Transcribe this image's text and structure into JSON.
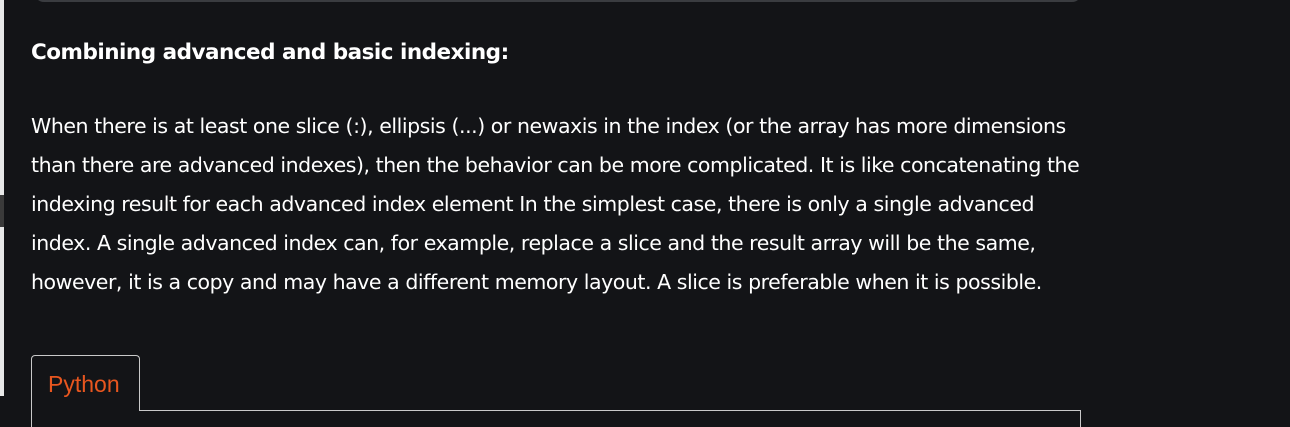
{
  "section": {
    "heading": "Combining advanced and basic indexing:",
    "paragraph": "When there is at least one slice (:), ellipsis (...) or newaxis in the index (or the array has more dimensions than there are advanced indexes), then the behavior can be more complicated. It is like concatenating the indexing result for each advanced index element In the simplest case, there is only a single advanced index. A single advanced index can, for example, replace a slice and the result array will be the same, however, it is a copy and may have a different memory layout. A slice is preferable when it is possible."
  },
  "code_tabs": {
    "tabs": [
      {
        "label": "Python"
      }
    ],
    "active_color": "#e8561f"
  },
  "colors": {
    "background": "#131417",
    "text": "#ffffff",
    "border": "#c9c9c9"
  }
}
